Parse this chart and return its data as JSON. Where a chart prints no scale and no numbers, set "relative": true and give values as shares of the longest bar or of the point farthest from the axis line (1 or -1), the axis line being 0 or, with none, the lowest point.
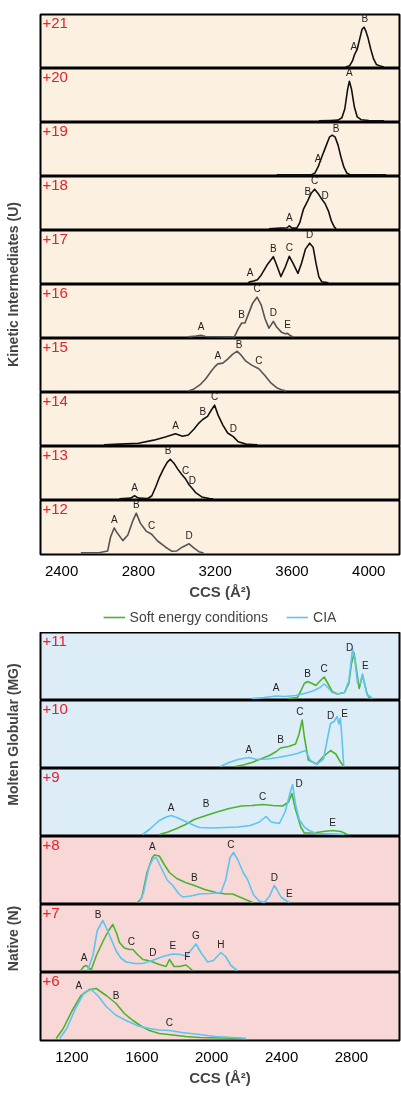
{
  "chart_data": [
    {
      "type": "line",
      "relative": true,
      "title": "+21",
      "xlim": [
        2290,
        4160
      ],
      "tick_labels": false,
      "series": [
        {
          "color": "#111111",
          "x": [
            3880,
            3900,
            3915,
            3925,
            3940,
            3955,
            3965,
            3975,
            3985,
            3995,
            4010,
            4025,
            4040,
            4060,
            4080
          ],
          "values": [
            0,
            0.03,
            0.15,
            0.3,
            0.45,
            0.75,
            0.95,
            1.0,
            0.9,
            0.75,
            0.45,
            0.2,
            0.06,
            0.02,
            0
          ]
        }
      ],
      "annotations": [
        {
          "text": "A",
          "x": 3922,
          "y": 0.3
        },
        {
          "text": "B",
          "x": 3980,
          "y": 1.0
        }
      ]
    },
    {
      "type": "line",
      "relative": true,
      "title": "+20",
      "xlim": [
        2290,
        4160
      ],
      "tick_labels": false,
      "series": [
        {
          "color": "#111111",
          "x": [
            3740,
            3800,
            3840,
            3860,
            3875,
            3890,
            3899,
            3910,
            3925,
            3940,
            3960,
            4000,
            4080
          ],
          "values": [
            0,
            0.01,
            0.02,
            0.08,
            0.3,
            0.8,
            1.0,
            0.8,
            0.35,
            0.1,
            0.03,
            0.01,
            0
          ]
        }
      ],
      "annotations": [
        {
          "text": "A",
          "x": 3899,
          "y": 1.0
        }
      ]
    },
    {
      "type": "line",
      "relative": true,
      "title": "+19",
      "xlim": [
        2290,
        4160
      ],
      "tick_labels": false,
      "series": [
        {
          "color": "#111111",
          "x": [
            3520,
            3700,
            3720,
            3736,
            3755,
            3775,
            3795,
            3810,
            3825,
            3840,
            3855,
            3870,
            3885,
            3900,
            4090
          ],
          "values": [
            0,
            0,
            0.05,
            0.2,
            0.45,
            0.7,
            0.95,
            1.0,
            0.95,
            0.75,
            0.45,
            0.2,
            0.05,
            0.01,
            0
          ]
        }
      ],
      "annotations": [
        {
          "text": "A",
          "x": 3736,
          "y": 0.2
        },
        {
          "text": "B",
          "x": 3830,
          "y": 0.95
        }
      ]
    },
    {
      "type": "line",
      "relative": true,
      "title": "+18",
      "xlim": [
        2290,
        4160
      ],
      "tick_labels": false,
      "series": [
        {
          "color": "#111111",
          "x": [
            3480,
            3540,
            3575,
            3586,
            3600,
            3625,
            3640,
            3660,
            3683,
            3700,
            3718,
            3735,
            3755,
            3772,
            3790,
            3805,
            3820,
            3830
          ],
          "values": [
            0,
            0.02,
            0.03,
            0.08,
            0.02,
            0.02,
            0.15,
            0.5,
            0.72,
            0.9,
            1.0,
            0.9,
            0.75,
            0.64,
            0.45,
            0.2,
            0.05,
            0
          ]
        }
      ],
      "annotations": [
        {
          "text": "A",
          "x": 3586,
          "y": 0.08
        },
        {
          "text": "B",
          "x": 3683,
          "y": 0.72
        },
        {
          "text": "C",
          "x": 3718,
          "y": 1.0
        },
        {
          "text": "D",
          "x": 3772,
          "y": 0.64
        }
      ]
    },
    {
      "type": "line",
      "relative": true,
      "title": "+17",
      "xlim": [
        2290,
        4160
      ],
      "tick_labels": false,
      "series": [
        {
          "color": "#111111",
          "x": [
            3370,
            3382,
            3400,
            3420,
            3440,
            3470,
            3503,
            3520,
            3542,
            3565,
            3586,
            3605,
            3631,
            3650,
            3670,
            3692,
            3710,
            3725,
            3740,
            3755,
            3790
          ],
          "values": [
            0,
            0.03,
            0.05,
            0.08,
            0.2,
            0.45,
            0.66,
            0.45,
            0.16,
            0.4,
            0.67,
            0.5,
            0.24,
            0.5,
            0.85,
            1.0,
            0.9,
            0.5,
            0.15,
            0.03,
            0
          ]
        }
      ],
      "annotations": [
        {
          "text": "A",
          "x": 3382,
          "y": 0.05
        },
        {
          "text": "B",
          "x": 3503,
          "y": 0.66
        },
        {
          "text": "C",
          "x": 3586,
          "y": 0.67
        },
        {
          "text": "D",
          "x": 3692,
          "y": 1.0
        }
      ]
    },
    {
      "type": "line",
      "relative": true,
      "title": "+16",
      "ylabel": "Kinetic Intermediates (U)",
      "xlim": [
        2290,
        4160
      ],
      "tick_labels": false,
      "series": [
        {
          "color": "#555555",
          "x": [
            3060,
            3100,
            3126,
            3150,
            3300,
            3320,
            3338,
            3355,
            3375,
            3395,
            3418,
            3440,
            3460,
            3480,
            3503,
            3520,
            3545,
            3565,
            3577,
            3595,
            3610
          ],
          "values": [
            0,
            0.02,
            0.04,
            0.01,
            0,
            0.2,
            0.35,
            0.35,
            0.6,
            0.85,
            1.0,
            0.8,
            0.45,
            0.22,
            0.39,
            0.25,
            0.12,
            0.08,
            0.09,
            0.02,
            0
          ]
        }
      ],
      "annotations": [
        {
          "text": "A",
          "x": 3126,
          "y": 0.04
        },
        {
          "text": "B",
          "x": 3338,
          "y": 0.35
        },
        {
          "text": "C",
          "x": 3418,
          "y": 1.0
        },
        {
          "text": "D",
          "x": 3503,
          "y": 0.39
        },
        {
          "text": "E",
          "x": 3577,
          "y": 0.09
        }
      ]
    },
    {
      "type": "line",
      "relative": true,
      "title": "+15",
      "xlim": [
        2290,
        4160
      ],
      "tick_labels": false,
      "series": [
        {
          "color": "#555555",
          "x": [
            3060,
            3090,
            3120,
            3150,
            3180,
            3200,
            3214,
            3240,
            3265,
            3290,
            3315,
            3335,
            3360,
            3390,
            3427,
            3460,
            3490,
            3520,
            3550,
            3570
          ],
          "values": [
            0,
            0.05,
            0.15,
            0.3,
            0.5,
            0.62,
            0.68,
            0.7,
            0.8,
            0.92,
            1.0,
            0.9,
            0.75,
            0.65,
            0.56,
            0.38,
            0.2,
            0.08,
            0.02,
            0
          ]
        }
      ],
      "annotations": [
        {
          "text": "A",
          "x": 3214,
          "y": 0.68
        },
        {
          "text": "B",
          "x": 3325,
          "y": 0.95
        },
        {
          "text": "C",
          "x": 3427,
          "y": 0.56
        }
      ]
    },
    {
      "type": "line",
      "relative": true,
      "title": "+14",
      "xlim": [
        2290,
        4160
      ],
      "tick_labels": false,
      "series": [
        {
          "color": "#111111",
          "x": [
            2620,
            2700,
            2800,
            2880,
            2940,
            2993,
            3030,
            3060,
            3090,
            3115,
            3135,
            3160,
            3180,
            3197,
            3215,
            3240,
            3265,
            3294,
            3320,
            3360,
            3420
          ],
          "values": [
            0,
            0.02,
            0.04,
            0.12,
            0.2,
            0.28,
            0.22,
            0.25,
            0.4,
            0.55,
            0.64,
            0.72,
            0.88,
            1.0,
            0.75,
            0.5,
            0.3,
            0.21,
            0.08,
            0.02,
            0
          ]
        }
      ],
      "annotations": [
        {
          "text": "A",
          "x": 2993,
          "y": 0.28
        },
        {
          "text": "B",
          "x": 3135,
          "y": 0.64
        },
        {
          "text": "C",
          "x": 3197,
          "y": 1.0
        },
        {
          "text": "D",
          "x": 3294,
          "y": 0.21
        }
      ]
    },
    {
      "type": "line",
      "relative": true,
      "title": "+13",
      "xlim": [
        2290,
        4160
      ],
      "tick_labels": false,
      "series": [
        {
          "color": "#111111",
          "x": [
            2700,
            2760,
            2780,
            2800,
            2850,
            2870,
            2890,
            2910,
            2930,
            2950,
            2966,
            2985,
            3005,
            3025,
            3046,
            3065,
            3081,
            3100,
            3130,
            3170,
            3190
          ],
          "values": [
            0,
            0.02,
            0.08,
            0.02,
            0.01,
            0.08,
            0.3,
            0.55,
            0.75,
            0.92,
            1.0,
            0.9,
            0.75,
            0.62,
            0.5,
            0.35,
            0.26,
            0.15,
            0.05,
            0.01,
            0
          ]
        }
      ],
      "annotations": [
        {
          "text": "A",
          "x": 2780,
          "y": 0.08
        },
        {
          "text": "B",
          "x": 2955,
          "y": 1.0
        },
        {
          "text": "C",
          "x": 3046,
          "y": 0.5
        },
        {
          "text": "D",
          "x": 3081,
          "y": 0.26
        }
      ]
    },
    {
      "type": "line",
      "relative": true,
      "title": "+12",
      "xlim": [
        2290,
        4160
      ],
      "xlabel": "CCS (Å²)",
      "xticks": [
        2400,
        2800,
        3200,
        3600,
        4000
      ],
      "tick_labels": "x",
      "series": [
        {
          "color": "#555555",
          "x": [
            2500,
            2600,
            2640,
            2655,
            2674,
            2690,
            2719,
            2745,
            2770,
            2789,
            2810,
            2840,
            2869,
            2900,
            2940,
            2975,
            3000,
            3030,
            3064,
            3090,
            3115,
            3140
          ],
          "values": [
            0,
            0.01,
            0.05,
            0.4,
            0.63,
            0.5,
            0.31,
            0.45,
            0.8,
            1.0,
            0.75,
            0.55,
            0.47,
            0.3,
            0.15,
            0.04,
            0.05,
            0.15,
            0.23,
            0.12,
            0.03,
            0
          ]
        }
      ],
      "annotations": [
        {
          "text": "A",
          "x": 2674,
          "y": 0.63
        },
        {
          "text": "B",
          "x": 2789,
          "y": 1.0
        },
        {
          "text": "C",
          "x": 2869,
          "y": 0.47
        },
        {
          "text": "D",
          "x": 3064,
          "y": 0.23
        }
      ]
    },
    {
      "type": "line",
      "relative": true,
      "title": "+11",
      "xlim": [
        1020,
        3075
      ],
      "tick_labels": false,
      "legend": "top",
      "series": [
        {
          "name": "Soft energy conditions",
          "color": "#4db32e",
          "x": [
            2440,
            2490,
            2510,
            2530,
            2549,
            2575,
            2596,
            2620,
            2644,
            2665,
            2690,
            2720,
            2760,
            2785,
            2800,
            2815,
            2828,
            2844,
            2855,
            2863,
            2875,
            2890,
            2905
          ],
          "values": [
            0,
            0.02,
            0.15,
            0.3,
            0.34,
            0.3,
            0.26,
            0.35,
            0.43,
            0.3,
            0.14,
            0.09,
            0.12,
            0.3,
            0.7,
            0.91,
            0.6,
            0.2,
            0.35,
            0.47,
            0.3,
            0.08,
            0
          ]
        },
        {
          "name": "CIA",
          "color": "#5ec4f0",
          "x": [
            2230,
            2300,
            2368,
            2420,
            2480,
            2530,
            2580,
            2620,
            2644,
            2665,
            2690,
            2720,
            2760,
            2785,
            2800,
            2806,
            2820,
            2835,
            2850,
            2863,
            2875,
            2890,
            2920
          ],
          "values": [
            0,
            0.02,
            0.05,
            0.04,
            0.06,
            0.1,
            0.15,
            0.22,
            0.29,
            0.22,
            0.12,
            0.09,
            0.12,
            0.35,
            0.8,
            1.0,
            0.75,
            0.3,
            0.3,
            0.49,
            0.3,
            0.08,
            0
          ]
        }
      ],
      "annotations": [
        {
          "text": "A",
          "x": 2368,
          "y": 0.05
        },
        {
          "text": "B",
          "x": 2549,
          "y": 0.34
        },
        {
          "text": "C",
          "x": 2644,
          "y": 0.43
        },
        {
          "text": "D",
          "x": 2790,
          "y": 0.85
        },
        {
          "text": "E",
          "x": 2880,
          "y": 0.49
        }
      ]
    },
    {
      "type": "line",
      "relative": true,
      "title": "+10",
      "ylabel": "Molten Globular (MG)",
      "xlim": [
        1020,
        3075
      ],
      "tick_labels": false,
      "series": [
        {
          "color": "#4db32e",
          "x": [
            2135,
            2180,
            2230,
            2280,
            2330,
            2370,
            2394,
            2440,
            2480,
            2500,
            2518,
            2530,
            2553,
            2600,
            2640,
            2680,
            2710,
            2735,
            2756
          ],
          "values": [
            0,
            0.03,
            0.08,
            0.15,
            0.22,
            0.3,
            0.37,
            0.4,
            0.45,
            0.65,
            0.93,
            0.6,
            0.13,
            0.05,
            0.2,
            0.32,
            0.25,
            0.1,
            0
          ]
        },
        {
          "color": "#5ec4f0",
          "x": [
            2050,
            2100,
            2150,
            2213,
            2260,
            2320,
            2380,
            2440,
            2490,
            2537,
            2565,
            2600,
            2640,
            2665,
            2680,
            2700,
            2718,
            2728,
            2737,
            2745,
            2756
          ],
          "values": [
            0,
            0.08,
            0.14,
            0.18,
            0.14,
            0.15,
            0.18,
            0.22,
            0.26,
            0.32,
            0.12,
            0.04,
            0.15,
            0.6,
            0.86,
            0.9,
            1.0,
            0.85,
            0.97,
            0.6,
            0
          ]
        }
      ],
      "annotations": [
        {
          "text": "A",
          "x": 2213,
          "y": 0.18
        },
        {
          "text": "B",
          "x": 2394,
          "y": 0.37
        },
        {
          "text": "C",
          "x": 2505,
          "y": 0.93
        },
        {
          "text": "D",
          "x": 2680,
          "y": 0.86
        },
        {
          "text": "E",
          "x": 2760,
          "y": 0.9
        }
      ]
    },
    {
      "type": "line",
      "relative": true,
      "title": "+9",
      "xlim": [
        1020,
        3075
      ],
      "tick_labels": false,
      "series": [
        {
          "color": "#4db32e",
          "x": [
            1700,
            1750,
            1800,
            1850,
            1900,
            1968,
            2030,
            2100,
            2170,
            2230,
            2292,
            2350,
            2406,
            2440,
            2459,
            2480,
            2510,
            2530,
            2580,
            2640,
            2692,
            2740,
            2777
          ],
          "values": [
            0,
            0.05,
            0.12,
            0.2,
            0.3,
            0.38,
            0.45,
            0.52,
            0.57,
            0.58,
            0.6,
            0.58,
            0.57,
            0.65,
            0.82,
            0.5,
            0.15,
            0.03,
            0.03,
            0.06,
            0.08,
            0.06,
            0
          ]
        },
        {
          "color": "#5ec4f0",
          "x": [
            1605,
            1650,
            1700,
            1740,
            1768,
            1800,
            1850,
            1900,
            1930,
            2000,
            2080,
            2150,
            2220,
            2273,
            2311,
            2340,
            2387,
            2420,
            2450,
            2463,
            2480,
            2501,
            2530,
            2558,
            2600,
            2700,
            2760
          ],
          "values": [
            0,
            0.12,
            0.28,
            0.35,
            0.38,
            0.34,
            0.26,
            0.18,
            0.14,
            0.13,
            0.14,
            0.15,
            0.18,
            0.25,
            0.36,
            0.25,
            0.22,
            0.45,
            0.85,
            1.0,
            0.6,
            0.3,
            0.15,
            0.08,
            0.02,
            0.01,
            0
          ]
        }
      ],
      "annotations": [
        {
          "text": "A",
          "x": 1768,
          "y": 0.38
        },
        {
          "text": "B",
          "x": 1968,
          "y": 0.45
        },
        {
          "text": "C",
          "x": 2292,
          "y": 0.6
        },
        {
          "text": "D",
          "x": 2500,
          "y": 0.85
        },
        {
          "text": "E",
          "x": 2692,
          "y": 0.08
        }
      ]
    },
    {
      "type": "line",
      "relative": true,
      "title": "+8",
      "xlim": [
        1020,
        3075
      ],
      "tick_labels": false,
      "series": [
        {
          "color": "#4db32e",
          "x": [
            1577,
            1600,
            1630,
            1660,
            1672,
            1700,
            1730,
            1758,
            1800,
            1850,
            1901,
            1960,
            2025,
            2080,
            2120,
            2180,
            2234
          ],
          "values": [
            0,
            0.1,
            0.6,
            0.9,
            0.95,
            0.93,
            0.75,
            0.6,
            0.48,
            0.4,
            0.34,
            0.26,
            0.2,
            0.17,
            0.17,
            0.08,
            0
          ]
        },
        {
          "color": "#5ec4f0",
          "x": [
            1585,
            1610,
            1640,
            1665,
            1682,
            1710,
            1745,
            1777,
            1810,
            1834,
            1880,
            1930,
            1990,
            2053,
            2080,
            2105,
            2125,
            2150,
            2180,
            2205,
            2240,
            2272,
            2300,
            2330,
            2358,
            2375,
            2396,
            2420,
            2444
          ],
          "values": [
            0,
            0.2,
            0.7,
            0.88,
            0.9,
            0.7,
            0.45,
            0.34,
            0.18,
            0.11,
            0.13,
            0.17,
            0.18,
            0.2,
            0.45,
            0.9,
            1.0,
            0.85,
            0.6,
            0.46,
            0.15,
            0.03,
            0,
            0.12,
            0.34,
            0.25,
            0.11,
            0.05,
            0
          ]
        }
      ],
      "annotations": [
        {
          "text": "A",
          "x": 1660,
          "y": 0.95
        },
        {
          "text": "B",
          "x": 1901,
          "y": 0.34
        },
        {
          "text": "C",
          "x": 2110,
          "y": 1.0
        },
        {
          "text": "D",
          "x": 2358,
          "y": 0.34
        },
        {
          "text": "E",
          "x": 2444,
          "y": 0.02
        }
      ]
    },
    {
      "type": "line",
      "relative": true,
      "title": "+7",
      "ylabel": "Native (N)",
      "xlim": [
        1020,
        3075
      ],
      "tick_labels": false,
      "series": [
        {
          "color": "#4db32e",
          "x": [
            1250,
            1268,
            1282,
            1298,
            1310,
            1340,
            1380,
            1410,
            1434,
            1455,
            1472,
            1500,
            1530,
            1549,
            1575,
            1606,
            1635,
            1663,
            1700,
            1739,
            1758,
            1785,
            1815,
            1853,
            1891
          ],
          "values": [
            0,
            0.08,
            0.1,
            0.05,
            0.01,
            0.3,
            0.6,
            0.8,
            0.92,
            0.75,
            0.56,
            0.45,
            0.42,
            0.42,
            0.32,
            0.22,
            0.2,
            0.17,
            0.12,
            0.08,
            0.22,
            0.08,
            0.08,
            0.11,
            0
          ]
        },
        {
          "color": "#5ec4f0",
          "x": [
            1290,
            1320,
            1345,
            1377,
            1410,
            1453,
            1480,
            1510,
            1560,
            1606,
            1660,
            1720,
            1777,
            1820,
            1853,
            1880,
            1910,
            1940,
            1977,
            2010,
            2053,
            2080,
            2110,
            2146
          ],
          "values": [
            0,
            0.3,
            0.8,
            1.0,
            0.75,
            0.39,
            0.25,
            0.17,
            0.14,
            0.14,
            0.2,
            0.28,
            0.33,
            0.32,
            0.29,
            0.4,
            0.53,
            0.35,
            0.17,
            0.2,
            0.36,
            0.28,
            0.1,
            0
          ]
        }
      ],
      "annotations": [
        {
          "text": "A",
          "x": 1270,
          "y": 0.1
        },
        {
          "text": "B",
          "x": 1350,
          "y": 0.95
        },
        {
          "text": "C",
          "x": 1540,
          "y": 0.42
        },
        {
          "text": "D",
          "x": 1663,
          "y": 0.2
        },
        {
          "text": "E",
          "x": 1777,
          "y": 0.33
        },
        {
          "text": "F",
          "x": 1860,
          "y": 0.11
        },
        {
          "text": "G",
          "x": 1910,
          "y": 0.53
        },
        {
          "text": "H",
          "x": 2053,
          "y": 0.36
        }
      ]
    },
    {
      "type": "line",
      "relative": true,
      "title": "+6",
      "xlim": [
        1020,
        3075
      ],
      "xlabel": "CCS (Å²)",
      "xticks": [
        1200,
        1600,
        2000,
        2400,
        2800
      ],
      "tick_labels": "x",
      "series": [
        {
          "color": "#4db32e",
          "x": [
            1110,
            1150,
            1200,
            1250,
            1300,
            1339,
            1400,
            1453,
            1500,
            1549,
            1600,
            1644,
            1700,
            1777,
            1850,
            1930,
            2050,
            2196
          ],
          "values": [
            0,
            0.2,
            0.55,
            0.85,
            0.98,
            1.0,
            0.85,
            0.7,
            0.5,
            0.36,
            0.24,
            0.16,
            0.1,
            0.07,
            0.04,
            0.02,
            0.01,
            0
          ]
        },
        {
          "color": "#5ec4f0",
          "x": [
            1130,
            1170,
            1220,
            1270,
            1310,
            1350,
            1396,
            1450,
            1510,
            1580,
            1644,
            1700,
            1758,
            1830,
            1930,
            2020,
            2120,
            2196
          ],
          "values": [
            0,
            0.2,
            0.6,
            0.92,
            0.98,
            0.85,
            0.64,
            0.47,
            0.36,
            0.25,
            0.2,
            0.17,
            0.16,
            0.12,
            0.08,
            0.04,
            0.02,
            0
          ]
        }
      ],
      "annotations": [
        {
          "text": "A",
          "x": 1240,
          "y": 0.9
        },
        {
          "text": "B",
          "x": 1453,
          "y": 0.7
        },
        {
          "text": "C",
          "x": 1758,
          "y": 0.16
        }
      ]
    }
  ]
}
